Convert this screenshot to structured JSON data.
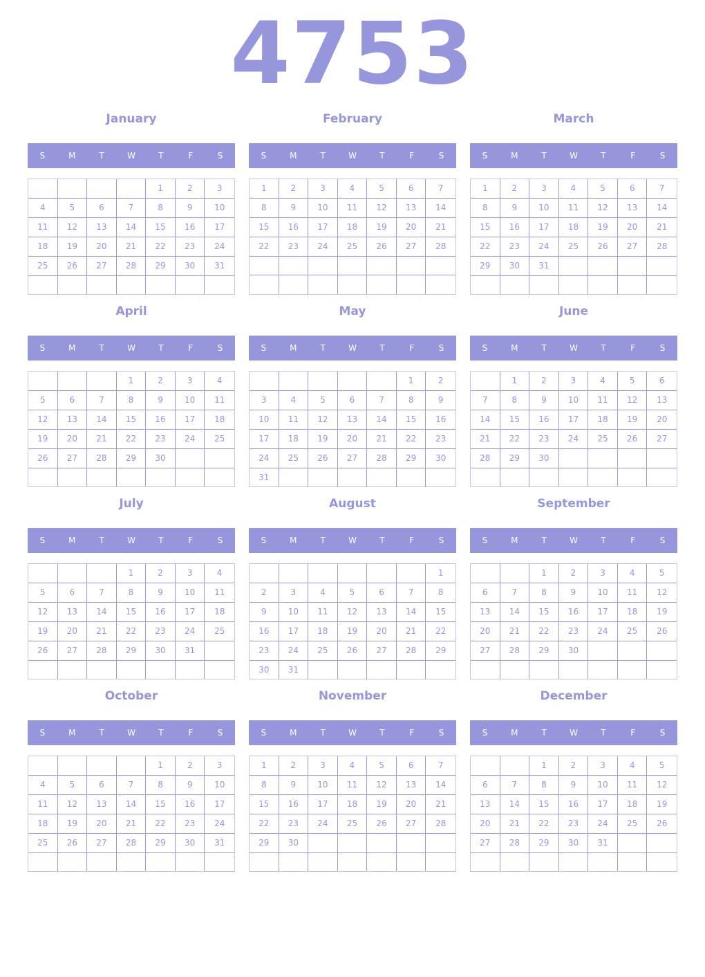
{
  "year": "4753",
  "weekday_labels": [
    "S",
    "M",
    "T",
    "W",
    "T",
    "F",
    "S"
  ],
  "accent_color": "#9696dc",
  "months": [
    {
      "name": "January",
      "weeks": [
        [
          null,
          null,
          null,
          null,
          1,
          2,
          3
        ],
        [
          4,
          5,
          6,
          7,
          8,
          9,
          10
        ],
        [
          11,
          12,
          13,
          14,
          15,
          16,
          17
        ],
        [
          18,
          19,
          20,
          21,
          22,
          23,
          24
        ],
        [
          25,
          26,
          27,
          28,
          29,
          30,
          31
        ],
        [
          null,
          null,
          null,
          null,
          null,
          null,
          null
        ]
      ]
    },
    {
      "name": "February",
      "weeks": [
        [
          1,
          2,
          3,
          4,
          5,
          6,
          7
        ],
        [
          8,
          9,
          10,
          11,
          12,
          13,
          14
        ],
        [
          15,
          16,
          17,
          18,
          19,
          20,
          21
        ],
        [
          22,
          23,
          24,
          25,
          26,
          27,
          28
        ],
        [
          null,
          null,
          null,
          null,
          null,
          null,
          null
        ],
        [
          null,
          null,
          null,
          null,
          null,
          null,
          null
        ]
      ]
    },
    {
      "name": "March",
      "weeks": [
        [
          1,
          2,
          3,
          4,
          5,
          6,
          7
        ],
        [
          8,
          9,
          10,
          11,
          12,
          13,
          14
        ],
        [
          15,
          16,
          17,
          18,
          19,
          20,
          21
        ],
        [
          22,
          23,
          24,
          25,
          26,
          27,
          28
        ],
        [
          29,
          30,
          31,
          null,
          null,
          null,
          null
        ],
        [
          null,
          null,
          null,
          null,
          null,
          null,
          null
        ]
      ]
    },
    {
      "name": "April",
      "weeks": [
        [
          null,
          null,
          null,
          1,
          2,
          3,
          4
        ],
        [
          5,
          6,
          7,
          8,
          9,
          10,
          11
        ],
        [
          12,
          13,
          14,
          15,
          16,
          17,
          18
        ],
        [
          19,
          20,
          21,
          22,
          23,
          24,
          25
        ],
        [
          26,
          27,
          28,
          29,
          30,
          null,
          null
        ],
        [
          null,
          null,
          null,
          null,
          null,
          null,
          null
        ]
      ]
    },
    {
      "name": "May",
      "weeks": [
        [
          null,
          null,
          null,
          null,
          null,
          1,
          2
        ],
        [
          3,
          4,
          5,
          6,
          7,
          8,
          9
        ],
        [
          10,
          11,
          12,
          13,
          14,
          15,
          16
        ],
        [
          17,
          18,
          19,
          20,
          21,
          22,
          23
        ],
        [
          24,
          25,
          26,
          27,
          28,
          29,
          30
        ],
        [
          31,
          null,
          null,
          null,
          null,
          null,
          null
        ]
      ]
    },
    {
      "name": "June",
      "weeks": [
        [
          null,
          1,
          2,
          3,
          4,
          5,
          6
        ],
        [
          7,
          8,
          9,
          10,
          11,
          12,
          13
        ],
        [
          14,
          15,
          16,
          17,
          18,
          19,
          20
        ],
        [
          21,
          22,
          23,
          24,
          25,
          26,
          27
        ],
        [
          28,
          29,
          30,
          null,
          null,
          null,
          null
        ],
        [
          null,
          null,
          null,
          null,
          null,
          null,
          null
        ]
      ]
    },
    {
      "name": "July",
      "weeks": [
        [
          null,
          null,
          null,
          1,
          2,
          3,
          4
        ],
        [
          5,
          6,
          7,
          8,
          9,
          10,
          11
        ],
        [
          12,
          13,
          14,
          15,
          16,
          17,
          18
        ],
        [
          19,
          20,
          21,
          22,
          23,
          24,
          25
        ],
        [
          26,
          27,
          28,
          29,
          30,
          31,
          null
        ],
        [
          null,
          null,
          null,
          null,
          null,
          null,
          null
        ]
      ]
    },
    {
      "name": "August",
      "weeks": [
        [
          null,
          null,
          null,
          null,
          null,
          null,
          1
        ],
        [
          2,
          3,
          4,
          5,
          6,
          7,
          8
        ],
        [
          9,
          10,
          11,
          12,
          13,
          14,
          15
        ],
        [
          16,
          17,
          18,
          19,
          20,
          21,
          22
        ],
        [
          23,
          24,
          25,
          26,
          27,
          28,
          29
        ],
        [
          30,
          31,
          null,
          null,
          null,
          null,
          null
        ]
      ]
    },
    {
      "name": "September",
      "weeks": [
        [
          null,
          null,
          1,
          2,
          3,
          4,
          5
        ],
        [
          6,
          7,
          8,
          9,
          10,
          11,
          12
        ],
        [
          13,
          14,
          15,
          16,
          17,
          18,
          19
        ],
        [
          20,
          21,
          22,
          23,
          24,
          25,
          26
        ],
        [
          27,
          28,
          29,
          30,
          null,
          null,
          null
        ],
        [
          null,
          null,
          null,
          null,
          null,
          null,
          null
        ]
      ]
    },
    {
      "name": "October",
      "weeks": [
        [
          null,
          null,
          null,
          null,
          1,
          2,
          3
        ],
        [
          4,
          5,
          6,
          7,
          8,
          9,
          10
        ],
        [
          11,
          12,
          13,
          14,
          15,
          16,
          17
        ],
        [
          18,
          19,
          20,
          21,
          22,
          23,
          24
        ],
        [
          25,
          26,
          27,
          28,
          29,
          30,
          31
        ],
        [
          null,
          null,
          null,
          null,
          null,
          null,
          null
        ]
      ]
    },
    {
      "name": "November",
      "weeks": [
        [
          1,
          2,
          3,
          4,
          5,
          6,
          7
        ],
        [
          8,
          9,
          10,
          11,
          12,
          13,
          14
        ],
        [
          15,
          16,
          17,
          18,
          19,
          20,
          21
        ],
        [
          22,
          23,
          24,
          25,
          26,
          27,
          28
        ],
        [
          29,
          30,
          null,
          null,
          null,
          null,
          null
        ],
        [
          null,
          null,
          null,
          null,
          null,
          null,
          null
        ]
      ]
    },
    {
      "name": "December",
      "weeks": [
        [
          null,
          null,
          1,
          2,
          3,
          4,
          5
        ],
        [
          6,
          7,
          8,
          9,
          10,
          11,
          12
        ],
        [
          13,
          14,
          15,
          16,
          17,
          18,
          19
        ],
        [
          20,
          21,
          22,
          23,
          24,
          25,
          26
        ],
        [
          27,
          28,
          29,
          30,
          31,
          null,
          null
        ],
        [
          null,
          null,
          null,
          null,
          null,
          null,
          null
        ]
      ]
    }
  ]
}
